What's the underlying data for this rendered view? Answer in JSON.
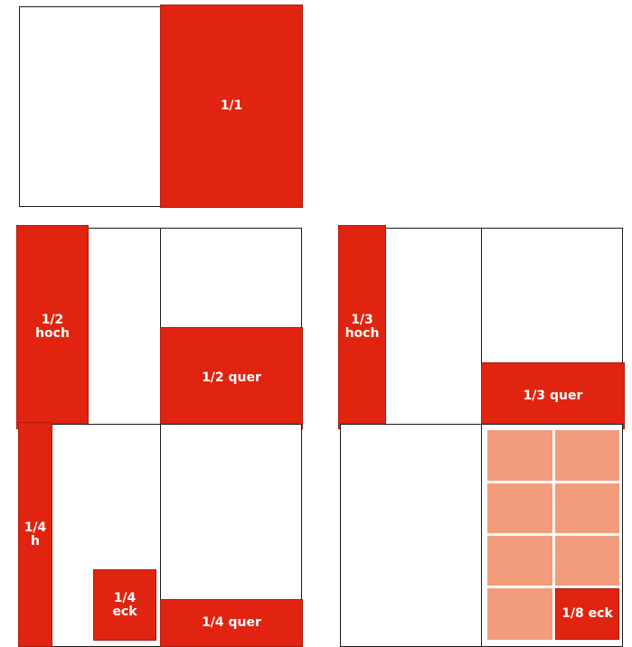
{
  "colors": {
    "red": "#e1240f",
    "red_dark": "#b01a0c",
    "light": "#f29c7c",
    "page_border": "#1a1a1a"
  },
  "formats": {
    "full": {
      "label": "1/1"
    },
    "half_hoch": {
      "line1": "1/2",
      "line2": "hoch"
    },
    "half_quer": {
      "label": "1/2 quer"
    },
    "third_hoch": {
      "line1": "1/3",
      "line2": "hoch"
    },
    "third_quer": {
      "label": "1/3 quer"
    },
    "quarter_h": {
      "line1": "1/4",
      "line2": "h"
    },
    "quarter_eck": {
      "line1": "1/4",
      "line2": "eck"
    },
    "quarter_quer": {
      "label": "1/4 quer"
    },
    "eighth_eck": {
      "label": "1/8 eck"
    }
  }
}
